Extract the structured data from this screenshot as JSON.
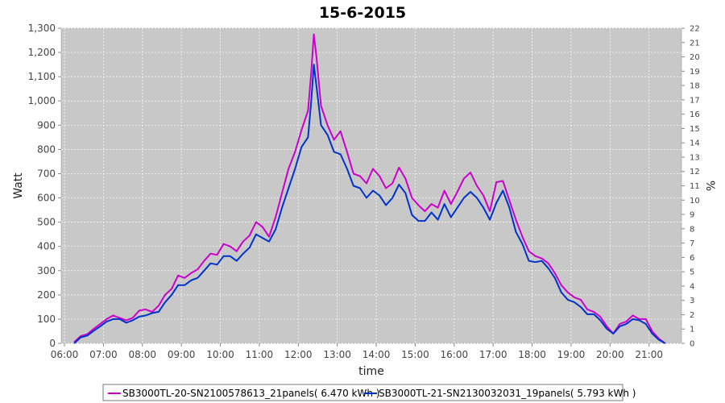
{
  "chart_data": {
    "type": "line",
    "title": "15-6-2015",
    "xlabel": "time",
    "ylabel": "Watt",
    "y2label": "%",
    "ylim": [
      0,
      1300
    ],
    "y2lim": [
      0,
      22
    ],
    "y_ticks": [
      0,
      100,
      200,
      300,
      400,
      500,
      600,
      700,
      800,
      900,
      1000,
      1100,
      1200,
      1300
    ],
    "y_tick_labels": [
      "0",
      "100",
      "200",
      "300",
      "400",
      "500",
      "600",
      "700",
      "800",
      "900",
      "1,000",
      "1,100",
      "1,200",
      "1,300"
    ],
    "y2_ticks": [
      0,
      1,
      2,
      3,
      4,
      5,
      6,
      7,
      8,
      9,
      10,
      11,
      12,
      13,
      14,
      15,
      16,
      17,
      18,
      19,
      20,
      21,
      22
    ],
    "xlim": [
      "05:55",
      "21:50"
    ],
    "x_ticks": [
      "06:00",
      "07:00",
      "08:00",
      "09:00",
      "10:00",
      "11:00",
      "12:00",
      "13:00",
      "14:00",
      "15:00",
      "16:00",
      "17:00",
      "18:00",
      "19:00",
      "20:00",
      "21:00"
    ],
    "grid": true,
    "legend_position": "bottom",
    "series": [
      {
        "name": "SB3000TL-20-SN2100578613_21panels( 6.470 kWh )",
        "color": "#cc00cc",
        "points": [
          [
            "06:15",
            5
          ],
          [
            "06:25",
            30
          ],
          [
            "06:35",
            38
          ],
          [
            "06:45",
            60
          ],
          [
            "06:55",
            80
          ],
          [
            "07:05",
            100
          ],
          [
            "07:15",
            115
          ],
          [
            "07:25",
            105
          ],
          [
            "07:35",
            95
          ],
          [
            "07:45",
            105
          ],
          [
            "07:55",
            135
          ],
          [
            "08:05",
            140
          ],
          [
            "08:15",
            130
          ],
          [
            "08:25",
            155
          ],
          [
            "08:35",
            200
          ],
          [
            "08:45",
            225
          ],
          [
            "08:55",
            280
          ],
          [
            "09:05",
            270
          ],
          [
            "09:15",
            290
          ],
          [
            "09:25",
            305
          ],
          [
            "09:35",
            340
          ],
          [
            "09:45",
            370
          ],
          [
            "09:55",
            365
          ],
          [
            "10:05",
            410
          ],
          [
            "10:15",
            400
          ],
          [
            "10:25",
            380
          ],
          [
            "10:35",
            420
          ],
          [
            "10:45",
            445
          ],
          [
            "10:55",
            500
          ],
          [
            "11:05",
            480
          ],
          [
            "11:15",
            440
          ],
          [
            "11:25",
            520
          ],
          [
            "11:35",
            620
          ],
          [
            "11:45",
            720
          ],
          [
            "11:55",
            790
          ],
          [
            "12:05",
            880
          ],
          [
            "12:15",
            960
          ],
          [
            "12:20",
            1120
          ],
          [
            "12:24",
            1275
          ],
          [
            "12:28",
            1180
          ],
          [
            "12:35",
            980
          ],
          [
            "12:45",
            900
          ],
          [
            "12:55",
            840
          ],
          [
            "13:05",
            875
          ],
          [
            "13:15",
            790
          ],
          [
            "13:25",
            700
          ],
          [
            "13:35",
            690
          ],
          [
            "13:45",
            660
          ],
          [
            "13:55",
            720
          ],
          [
            "14:05",
            690
          ],
          [
            "14:15",
            640
          ],
          [
            "14:25",
            660
          ],
          [
            "14:35",
            725
          ],
          [
            "14:45",
            680
          ],
          [
            "14:55",
            600
          ],
          [
            "15:05",
            570
          ],
          [
            "15:15",
            545
          ],
          [
            "15:25",
            575
          ],
          [
            "15:35",
            560
          ],
          [
            "15:45",
            630
          ],
          [
            "15:55",
            575
          ],
          [
            "16:05",
            625
          ],
          [
            "16:15",
            680
          ],
          [
            "16:25",
            705
          ],
          [
            "16:35",
            650
          ],
          [
            "16:45",
            610
          ],
          [
            "16:55",
            545
          ],
          [
            "17:05",
            665
          ],
          [
            "17:15",
            670
          ],
          [
            "17:25",
            590
          ],
          [
            "17:35",
            510
          ],
          [
            "17:45",
            440
          ],
          [
            "17:55",
            380
          ],
          [
            "18:05",
            360
          ],
          [
            "18:15",
            350
          ],
          [
            "18:25",
            330
          ],
          [
            "18:35",
            290
          ],
          [
            "18:45",
            240
          ],
          [
            "18:55",
            210
          ],
          [
            "19:05",
            190
          ],
          [
            "19:15",
            180
          ],
          [
            "19:25",
            140
          ],
          [
            "19:35",
            130
          ],
          [
            "19:45",
            110
          ],
          [
            "19:55",
            70
          ],
          [
            "20:05",
            40
          ],
          [
            "20:15",
            80
          ],
          [
            "20:25",
            90
          ],
          [
            "20:35",
            115
          ],
          [
            "20:45",
            100
          ],
          [
            "20:55",
            100
          ],
          [
            "21:05",
            50
          ],
          [
            "21:15",
            20
          ],
          [
            "21:25",
            0
          ]
        ]
      },
      {
        "name": "SB3000TL-21-SN2130032031_19panels( 5.793 kWh )",
        "color": "#0033cc",
        "points": [
          [
            "06:15",
            0
          ],
          [
            "06:25",
            25
          ],
          [
            "06:35",
            32
          ],
          [
            "06:45",
            52
          ],
          [
            "06:55",
            70
          ],
          [
            "07:05",
            90
          ],
          [
            "07:15",
            100
          ],
          [
            "07:25",
            100
          ],
          [
            "07:35",
            85
          ],
          [
            "07:45",
            95
          ],
          [
            "07:55",
            110
          ],
          [
            "08:05",
            115
          ],
          [
            "08:15",
            125
          ],
          [
            "08:25",
            130
          ],
          [
            "08:35",
            170
          ],
          [
            "08:45",
            200
          ],
          [
            "08:55",
            240
          ],
          [
            "09:05",
            240
          ],
          [
            "09:15",
            260
          ],
          [
            "09:25",
            270
          ],
          [
            "09:35",
            300
          ],
          [
            "09:45",
            330
          ],
          [
            "09:55",
            325
          ],
          [
            "10:05",
            360
          ],
          [
            "10:15",
            360
          ],
          [
            "10:25",
            340
          ],
          [
            "10:35",
            370
          ],
          [
            "10:45",
            395
          ],
          [
            "10:55",
            450
          ],
          [
            "11:05",
            435
          ],
          [
            "11:15",
            420
          ],
          [
            "11:25",
            470
          ],
          [
            "11:35",
            560
          ],
          [
            "11:45",
            640
          ],
          [
            "11:55",
            720
          ],
          [
            "12:05",
            810
          ],
          [
            "12:15",
            850
          ],
          [
            "12:20",
            1000
          ],
          [
            "12:24",
            1150
          ],
          [
            "12:28",
            1060
          ],
          [
            "12:35",
            900
          ],
          [
            "12:45",
            860
          ],
          [
            "12:55",
            790
          ],
          [
            "13:05",
            780
          ],
          [
            "13:15",
            720
          ],
          [
            "13:25",
            650
          ],
          [
            "13:35",
            640
          ],
          [
            "13:45",
            600
          ],
          [
            "13:55",
            630
          ],
          [
            "14:05",
            610
          ],
          [
            "14:15",
            570
          ],
          [
            "14:25",
            600
          ],
          [
            "14:35",
            655
          ],
          [
            "14:45",
            620
          ],
          [
            "14:55",
            530
          ],
          [
            "15:05",
            505
          ],
          [
            "15:15",
            505
          ],
          [
            "15:25",
            540
          ],
          [
            "15:35",
            510
          ],
          [
            "15:45",
            575
          ],
          [
            "15:55",
            520
          ],
          [
            "16:05",
            560
          ],
          [
            "16:15",
            600
          ],
          [
            "16:25",
            625
          ],
          [
            "16:35",
            600
          ],
          [
            "16:45",
            560
          ],
          [
            "16:55",
            510
          ],
          [
            "17:05",
            580
          ],
          [
            "17:15",
            630
          ],
          [
            "17:25",
            560
          ],
          [
            "17:35",
            460
          ],
          [
            "17:45",
            410
          ],
          [
            "17:55",
            340
          ],
          [
            "18:05",
            335
          ],
          [
            "18:15",
            340
          ],
          [
            "18:25",
            310
          ],
          [
            "18:35",
            270
          ],
          [
            "18:45",
            210
          ],
          [
            "18:55",
            180
          ],
          [
            "19:05",
            170
          ],
          [
            "19:15",
            150
          ],
          [
            "19:25",
            120
          ],
          [
            "19:35",
            120
          ],
          [
            "19:45",
            95
          ],
          [
            "19:55",
            60
          ],
          [
            "20:05",
            40
          ],
          [
            "20:15",
            70
          ],
          [
            "20:25",
            80
          ],
          [
            "20:35",
            100
          ],
          [
            "20:45",
            95
          ],
          [
            "20:55",
            80
          ],
          [
            "21:05",
            40
          ],
          [
            "21:15",
            15
          ],
          [
            "21:25",
            0
          ]
        ]
      }
    ]
  }
}
